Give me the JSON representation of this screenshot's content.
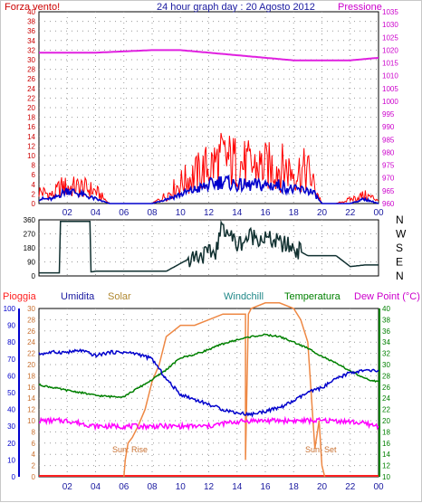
{
  "chart_data": [
    {
      "type": "line",
      "title": "24 hour graph day : 20 Agosto 2012",
      "left_label": "Forza vento!",
      "right_label": "Pressione",
      "left_ticks": [
        "0",
        "2",
        "4",
        "6",
        "8",
        "10",
        "12",
        "14",
        "16",
        "18",
        "20",
        "22",
        "24",
        "26",
        "28",
        "30",
        "32",
        "34",
        "36",
        "38",
        "40"
      ],
      "right_ticks": [
        "960",
        "965",
        "970",
        "975",
        "980",
        "985",
        "990",
        "995",
        "1000",
        "1005",
        "1010",
        "1015",
        "1020",
        "1025",
        "1030",
        "1035"
      ],
      "x_ticks": [
        "02",
        "04",
        "06",
        "08",
        "10",
        "12",
        "14",
        "16",
        "18",
        "20",
        "22",
        "00"
      ],
      "ylim": [
        0,
        40
      ],
      "y2lim": [
        960,
        1035
      ],
      "grid": true,
      "colors": {
        "gust": "#ff0000",
        "wind": "#0000cc",
        "pressure": "#e020e0"
      },
      "series": [
        {
          "key": "gust",
          "x": [
            0,
            1,
            1.5,
            2,
            3,
            4,
            5,
            6,
            7,
            8,
            9,
            10,
            11,
            12,
            13,
            14,
            15,
            16,
            17,
            18,
            19,
            19.5,
            20,
            21,
            22,
            23,
            24
          ],
          "values": [
            3,
            2,
            4,
            4,
            4,
            3,
            0,
            0,
            0,
            0,
            2,
            5,
            7,
            9,
            11,
            10,
            9,
            9,
            9,
            8,
            8,
            4,
            0,
            0,
            1,
            2,
            1
          ]
        },
        {
          "key": "wind",
          "x": [
            0,
            1,
            1.5,
            2,
            3,
            4,
            5,
            6,
            7,
            8,
            9,
            10,
            11,
            12,
            13,
            14,
            15,
            16,
            17,
            18,
            19,
            19.5,
            20,
            21,
            22,
            23,
            24
          ],
          "values": [
            1,
            1,
            2,
            3,
            2,
            1,
            0,
            0,
            0,
            0,
            1,
            2,
            3,
            4,
            5,
            4,
            4,
            4,
            4,
            3,
            3,
            2,
            0,
            0,
            0,
            1,
            0
          ]
        },
        {
          "key": "pressure",
          "x": [
            0,
            2,
            4,
            6,
            8,
            10,
            11,
            12,
            14,
            16,
            18,
            20,
            22,
            24
          ],
          "values": [
            1019,
            1019,
            1019,
            1019.5,
            1020,
            1020,
            1019.5,
            1019,
            1018,
            1017,
            1016,
            1016,
            1016,
            1017
          ]
        }
      ]
    },
    {
      "type": "line",
      "right_ticks": [
        "N",
        "W",
        "S",
        "E",
        "N"
      ],
      "left_ticks": [
        "0",
        "90",
        "180",
        "270",
        "360"
      ],
      "x_ticks": [
        "02",
        "04",
        "06",
        "08",
        "10",
        "12",
        "14",
        "16",
        "18",
        "20",
        "22",
        "00"
      ],
      "ylim": [
        0,
        360
      ],
      "grid": true,
      "colors": {
        "direction": "#103030"
      },
      "series": [
        {
          "key": "direction",
          "x": [
            0,
            1.5,
            1.5,
            3.6,
            3.6,
            4,
            6,
            8,
            9,
            10,
            11,
            12,
            12.5,
            13,
            14,
            15,
            16,
            17,
            18,
            19,
            20,
            21,
            22,
            23,
            24
          ],
          "values": [
            20,
            20,
            350,
            350,
            25,
            30,
            30,
            30,
            30,
            80,
            130,
            140,
            160,
            330,
            200,
            260,
            240,
            210,
            180,
            130,
            130,
            130,
            60,
            70,
            70
          ]
        }
      ]
    },
    {
      "type": "line",
      "labels": {
        "rain": "Pioggia",
        "humidity": "Umidita",
        "solar": "Solar",
        "windchill": "Windchill",
        "temperature": "Temperatura",
        "dewpoint": "Dew Point (°C)"
      },
      "left_ticks": [
        "0",
        "10",
        "20",
        "30",
        "40",
        "50",
        "60",
        "70",
        "80",
        "90",
        "100"
      ],
      "solar_ticks": [
        "0",
        "2",
        "4",
        "6",
        "8",
        "10",
        "12",
        "14",
        "16",
        "18",
        "20",
        "22",
        "24",
        "26",
        "28",
        "30"
      ],
      "right_ticks": [
        "10",
        "12",
        "14",
        "16",
        "18",
        "20",
        "22",
        "24",
        "26",
        "28",
        "30",
        "32",
        "34",
        "36",
        "38",
        "40"
      ],
      "x_ticks": [
        "02",
        "04",
        "06",
        "08",
        "10",
        "12",
        "14",
        "16",
        "18",
        "20",
        "22",
        "00"
      ],
      "annotations": {
        "sunrise": "Sun: Rise",
        "sunset": "Sun: Set"
      },
      "ylim": [
        0,
        100
      ],
      "y2lim": [
        10,
        40
      ],
      "grid": true,
      "colors": {
        "rain": "#ff2020",
        "humidity": "#0000cc",
        "solar": "#ee8844",
        "windchill": "#20a0a0",
        "temperature": "#008000",
        "dewpoint": "#ff00ff"
      },
      "series": [
        {
          "key": "humidity",
          "x": [
            0,
            1,
            2,
            3,
            4,
            5,
            6,
            7,
            8,
            9,
            10,
            11,
            12,
            13,
            14,
            15,
            16,
            17,
            18,
            19,
            20,
            21,
            22,
            23,
            24
          ],
          "values": [
            73,
            74,
            74,
            75,
            72,
            74,
            74,
            73,
            70,
            58,
            49,
            46,
            43,
            40,
            38,
            37,
            39,
            41,
            45,
            50,
            53,
            58,
            62,
            63,
            63
          ]
        },
        {
          "key": "temperature",
          "x": [
            0,
            1,
            2,
            3,
            4,
            5,
            6,
            7,
            8,
            9,
            10,
            11,
            12,
            13,
            14,
            15,
            16,
            17,
            18,
            19,
            20,
            21,
            22,
            23,
            24
          ],
          "values": [
            26.4,
            25.9,
            25.4,
            25,
            24.5,
            24.3,
            24.3,
            25.8,
            27.3,
            29.1,
            31.2,
            31.8,
            32.7,
            33.7,
            34.4,
            35,
            35.3,
            35,
            34,
            32.9,
            31.5,
            30.2,
            28.9,
            27.5,
            26.9
          ]
        },
        {
          "key": "dewpoint",
          "x": [
            0,
            1,
            2,
            3,
            4,
            5,
            6,
            7,
            8,
            9,
            10,
            11,
            12,
            13,
            14,
            15,
            16,
            17,
            18,
            19,
            20,
            21,
            22,
            23,
            24
          ],
          "values": [
            20,
            20,
            20,
            19.5,
            19,
            19,
            19,
            19,
            19,
            19,
            19,
            19,
            19,
            19.5,
            19.8,
            20,
            20,
            20,
            20,
            20,
            20,
            20,
            19.8,
            19.5,
            19
          ]
        },
        {
          "key": "solar",
          "x": [
            6,
            6.1,
            6.3,
            6.6,
            7,
            7.5,
            8,
            8.5,
            9,
            10,
            11,
            12,
            13,
            14,
            14.6,
            14.6,
            14.8,
            15,
            16,
            17,
            18,
            18.5,
            19,
            19.5,
            19.8,
            20,
            20.2
          ],
          "values": [
            0,
            3,
            6,
            7,
            9,
            12,
            17,
            20,
            25,
            27,
            27,
            28,
            29,
            29,
            29,
            3,
            29,
            30,
            31,
            31,
            30,
            28,
            24,
            5,
            10,
            2,
            0
          ]
        },
        {
          "key": "rain",
          "x": [
            0,
            24
          ],
          "values": [
            0,
            0
          ]
        }
      ]
    }
  ]
}
